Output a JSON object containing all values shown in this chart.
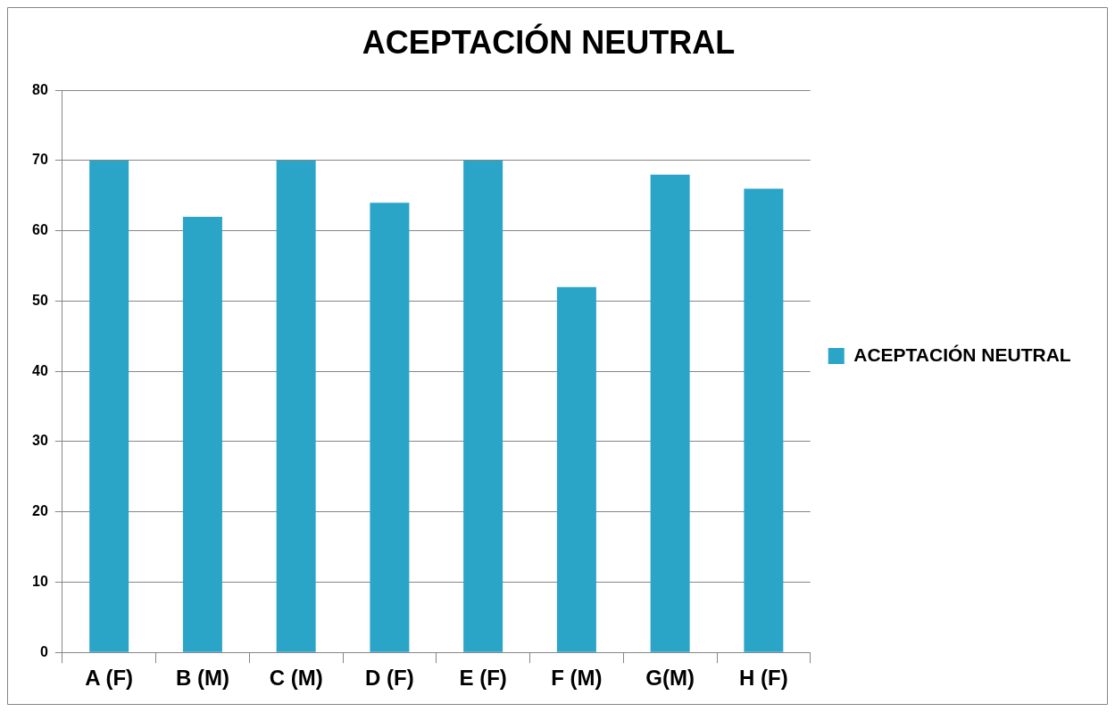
{
  "chart_data": {
    "type": "bar",
    "title": "ACEPTACIÓN NEUTRAL",
    "categories": [
      "A (F)",
      "B (M)",
      "C (M)",
      "D (F)",
      "E (F)",
      "F (M)",
      "G(M)",
      "H (F)"
    ],
    "series": [
      {
        "name": "ACEPTACIÓN NEUTRAL",
        "color": "#2aa5c8",
        "values": [
          70,
          62,
          70,
          64,
          70,
          52,
          68,
          66
        ]
      }
    ],
    "ylim": [
      0,
      80
    ],
    "yticks": [
      0,
      10,
      20,
      30,
      40,
      50,
      60,
      70,
      80
    ],
    "grid": "y",
    "legend": "right"
  }
}
